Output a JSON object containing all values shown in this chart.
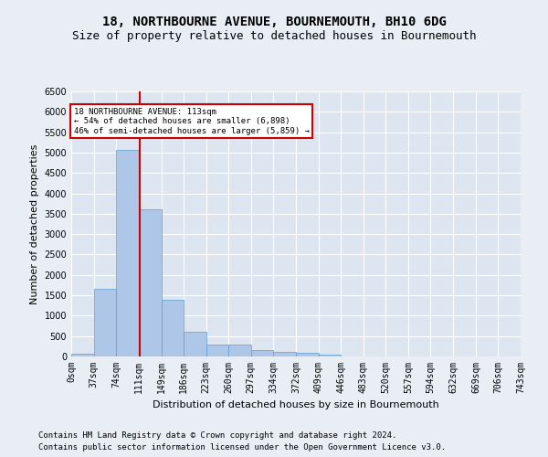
{
  "title": "18, NORTHBOURNE AVENUE, BOURNEMOUTH, BH10 6DG",
  "subtitle": "Size of property relative to detached houses in Bournemouth",
  "xlabel": "Distribution of detached houses by size in Bournemouth",
  "ylabel": "Number of detached properties",
  "footer1": "Contains HM Land Registry data © Crown copyright and database right 2024.",
  "footer2": "Contains public sector information licensed under the Open Government Licence v3.0.",
  "bin_edges": [
    0,
    37,
    74,
    111,
    149,
    186,
    223,
    260,
    297,
    334,
    372,
    409,
    446,
    483,
    520,
    557,
    594,
    632,
    669,
    706,
    743
  ],
  "bar_heights": [
    75,
    1650,
    5075,
    3600,
    1400,
    610,
    300,
    300,
    150,
    110,
    80,
    50,
    0,
    0,
    0,
    0,
    0,
    0,
    0,
    0
  ],
  "bar_color": "#aec6e8",
  "bar_edge_color": "#5a9fd4",
  "vline_x": 113,
  "vline_color": "#cc0000",
  "annotation_text": "18 NORTHBOURNE AVENUE: 113sqm\n← 54% of detached houses are smaller (6,898)\n46% of semi-detached houses are larger (5,859) →",
  "annotation_box_color": "white",
  "annotation_box_edge": "#cc0000",
  "ylim": [
    0,
    6500
  ],
  "xlim": [
    0,
    743
  ],
  "yticks": [
    0,
    500,
    1000,
    1500,
    2000,
    2500,
    3000,
    3500,
    4000,
    4500,
    5000,
    5500,
    6000,
    6500
  ],
  "bg_color": "#e8eef4",
  "plot_bg_color": "#dde6f0",
  "grid_color": "#ffffff",
  "title_fontsize": 10,
  "subtitle_fontsize": 9,
  "label_fontsize": 8,
  "tick_fontsize": 7,
  "footer_fontsize": 6.5
}
